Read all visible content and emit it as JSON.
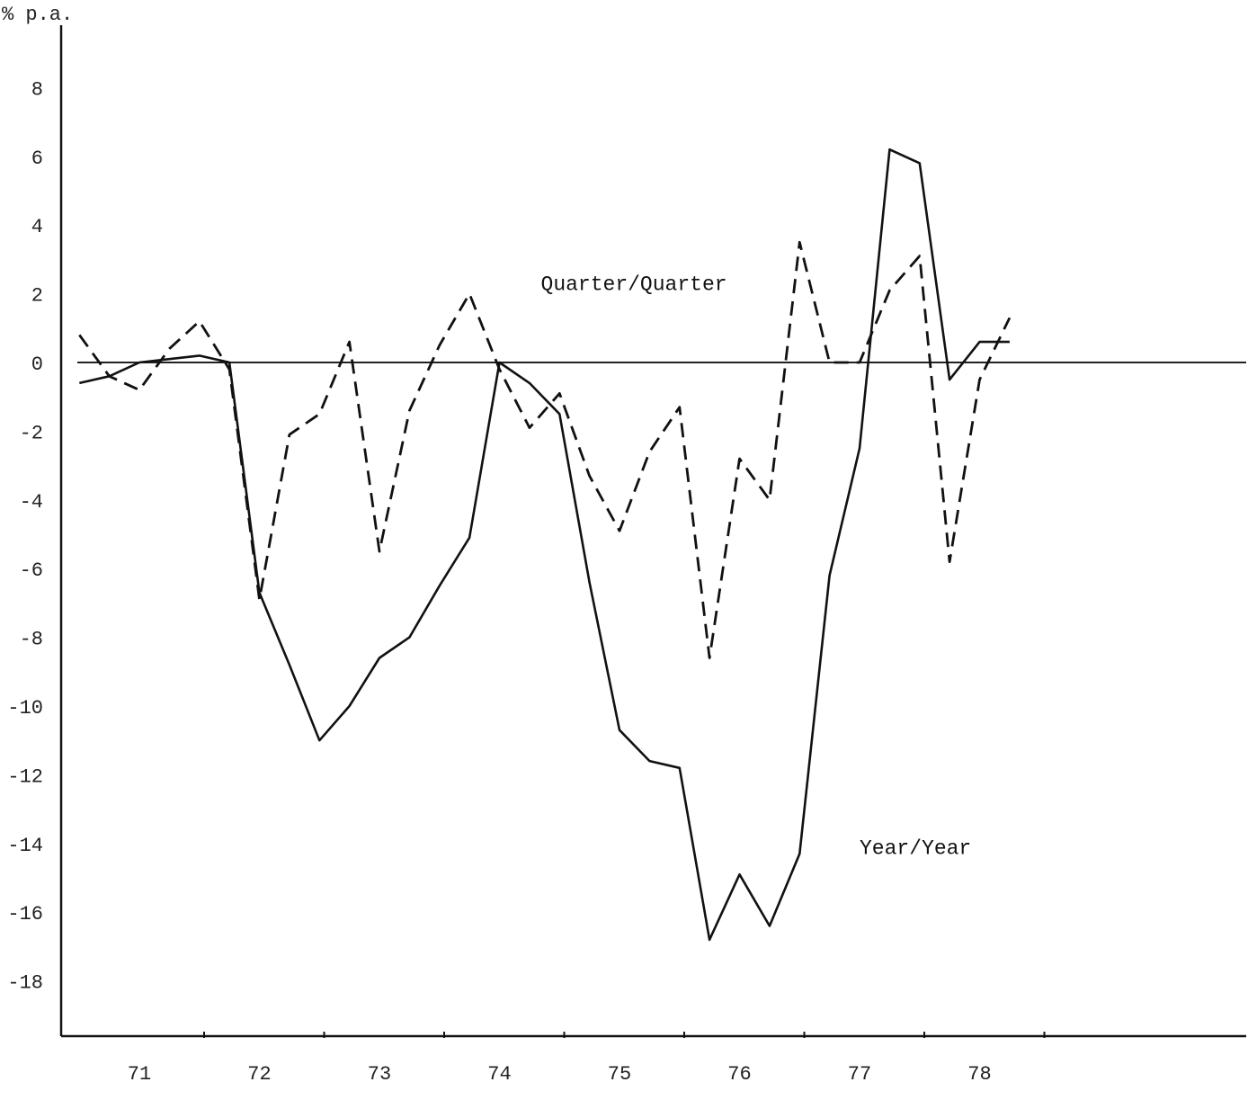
{
  "chart_data": {
    "type": "line",
    "ylabel": "% p.a.",
    "xlabel": "",
    "ylim": [
      -20,
      10
    ],
    "y_ticks": [
      8,
      6,
      4,
      2,
      0,
      -2,
      -4,
      -6,
      -8,
      -10,
      -12,
      -14,
      -16,
      -18
    ],
    "x_tick_labels": [
      "71",
      "72",
      "73",
      "74",
      "75",
      "76",
      "77",
      "78"
    ],
    "x_tick_years": [
      1971.25,
      1972.25,
      1973.25,
      1974.25,
      1975.25,
      1976.25,
      1977.25,
      1978.25
    ],
    "xlim": [
      1970.5,
      1978.8
    ],
    "grid": false,
    "zero_line": true,
    "series": [
      {
        "name": "Quarter/Quarter",
        "style": "dashed",
        "color": "#111111",
        "x": [
          1970.75,
          1971.0,
          1971.25,
          1971.5,
          1971.75,
          1972.0,
          1972.25,
          1972.5,
          1972.75,
          1973.0,
          1973.25,
          1973.5,
          1973.75,
          1974.0,
          1974.25,
          1974.5,
          1974.75,
          1975.0,
          1975.25,
          1975.5,
          1975.75,
          1976.0,
          1976.25,
          1976.5,
          1976.75,
          1977.0,
          1977.25,
          1977.5,
          1977.75,
          1978.0,
          1978.25,
          1978.5
        ],
        "y": [
          0.8,
          -0.4,
          -0.8,
          0.4,
          1.2,
          -0.2,
          -6.9,
          -2.1,
          -1.5,
          0.6,
          -5.5,
          -1.4,
          0.5,
          2.0,
          -0.2,
          -1.9,
          -0.9,
          -3.3,
          -4.9,
          -2.6,
          -1.3,
          -8.6,
          -2.8,
          -4.0,
          3.5,
          0.0,
          0.0,
          2.1,
          3.1,
          -5.8,
          -0.5,
          1.3
        ]
      },
      {
        "name": "Year/Year",
        "style": "solid",
        "color": "#111111",
        "x": [
          1970.75,
          1971.0,
          1971.25,
          1971.5,
          1971.75,
          1972.0,
          1972.25,
          1972.5,
          1972.75,
          1973.0,
          1973.25,
          1973.5,
          1973.75,
          1974.0,
          1974.25,
          1974.5,
          1974.75,
          1975.0,
          1975.25,
          1975.5,
          1975.75,
          1976.0,
          1976.25,
          1976.5,
          1976.75,
          1977.0,
          1977.25,
          1977.5,
          1977.75,
          1978.0,
          1978.25,
          1978.5
        ],
        "y": [
          -0.6,
          -0.4,
          0.0,
          0.1,
          0.2,
          0.0,
          -6.7,
          -8.8,
          -11.0,
          -10.0,
          -8.6,
          -8.0,
          -6.5,
          -5.1,
          0.0,
          -0.6,
          -1.5,
          -6.4,
          -10.7,
          -11.6,
          -11.8,
          -16.8,
          -14.9,
          -16.4,
          -14.3,
          -6.2,
          -2.5,
          6.2,
          5.8,
          -0.5,
          0.6,
          0.6
        ]
      }
    ],
    "annotations": [
      {
        "text": "Quarter/Quarter",
        "series": 0,
        "x": 1974.4,
        "y": 2.0
      },
      {
        "text": "Year/Year",
        "series": 1,
        "x": 1977.25,
        "y": -14.3
      }
    ]
  }
}
